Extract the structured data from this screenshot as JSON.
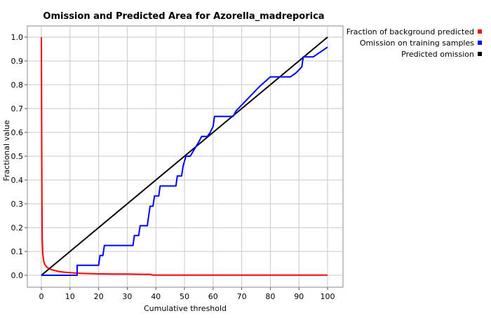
{
  "chart_data": {
    "type": "line",
    "title": "Omission and Predicted Area for Azorella_madreporica",
    "xlabel": "Cumulative threshold",
    "ylabel": "Fractional value",
    "xlim": [
      0,
      100
    ],
    "ylim": [
      0,
      1.0
    ],
    "x_ticks": [
      "0",
      "10",
      "20",
      "30",
      "40",
      "50",
      "60",
      "70",
      "80",
      "90",
      "100"
    ],
    "y_ticks": [
      "0.0",
      "0.1",
      "0.2",
      "0.3",
      "0.4",
      "0.5",
      "0.6",
      "0.7",
      "0.8",
      "0.9",
      "1.0"
    ],
    "grid": true,
    "legend_position": "top-right, outside plot",
    "series": [
      {
        "name": "Fraction of background predicted",
        "color": "#ff0000",
        "points": [
          [
            0,
            1.0
          ],
          [
            0.1,
            0.6
          ],
          [
            0.2,
            0.3
          ],
          [
            0.3,
            0.15
          ],
          [
            0.5,
            0.09
          ],
          [
            0.8,
            0.06
          ],
          [
            1.2,
            0.045
          ],
          [
            2,
            0.033
          ],
          [
            3,
            0.026
          ],
          [
            4,
            0.022
          ],
          [
            5,
            0.019
          ],
          [
            6,
            0.016
          ],
          [
            8,
            0.013
          ],
          [
            10,
            0.011
          ],
          [
            12,
            0.009
          ],
          [
            14,
            0.008
          ],
          [
            17,
            0.007
          ],
          [
            20,
            0.006
          ],
          [
            25,
            0.005
          ],
          [
            30,
            0.005
          ],
          [
            35,
            0.004
          ],
          [
            38,
            0.004
          ],
          [
            39,
            0.001
          ],
          [
            45,
            0.001
          ],
          [
            60,
            0.001
          ],
          [
            80,
            0.001
          ],
          [
            100,
            0.001
          ]
        ]
      },
      {
        "name": "Omission on training samples",
        "color": "#0000ff",
        "points": [
          [
            0,
            0.0
          ],
          [
            12.5,
            0.0
          ],
          [
            12.5,
            0.042
          ],
          [
            20,
            0.042
          ],
          [
            20.5,
            0.083
          ],
          [
            21.5,
            0.083
          ],
          [
            22,
            0.125
          ],
          [
            32,
            0.125
          ],
          [
            32.5,
            0.167
          ],
          [
            34,
            0.167
          ],
          [
            34.5,
            0.208
          ],
          [
            37,
            0.208
          ],
          [
            37.5,
            0.25
          ],
          [
            38,
            0.29
          ],
          [
            39,
            0.29
          ],
          [
            39.5,
            0.333
          ],
          [
            41,
            0.333
          ],
          [
            41.5,
            0.375
          ],
          [
            47,
            0.375
          ],
          [
            47.5,
            0.417
          ],
          [
            49,
            0.417
          ],
          [
            49.5,
            0.458
          ],
          [
            50.5,
            0.5
          ],
          [
            52,
            0.5
          ],
          [
            53,
            0.52
          ],
          [
            55,
            0.56
          ],
          [
            56,
            0.583
          ],
          [
            58,
            0.583
          ],
          [
            59,
            0.6
          ],
          [
            60,
            0.625
          ],
          [
            60.5,
            0.667
          ],
          [
            66,
            0.667
          ],
          [
            67,
            0.667
          ],
          [
            68,
            0.69
          ],
          [
            72,
            0.74
          ],
          [
            76,
            0.79
          ],
          [
            80,
            0.833
          ],
          [
            87,
            0.833
          ],
          [
            89,
            0.85
          ],
          [
            91,
            0.875
          ],
          [
            91.5,
            0.917
          ],
          [
            95,
            0.917
          ],
          [
            100,
            0.958
          ]
        ]
      },
      {
        "name": "Predicted omission",
        "color": "#000000",
        "points": [
          [
            0,
            0.0
          ],
          [
            100,
            1.0
          ]
        ]
      }
    ]
  }
}
